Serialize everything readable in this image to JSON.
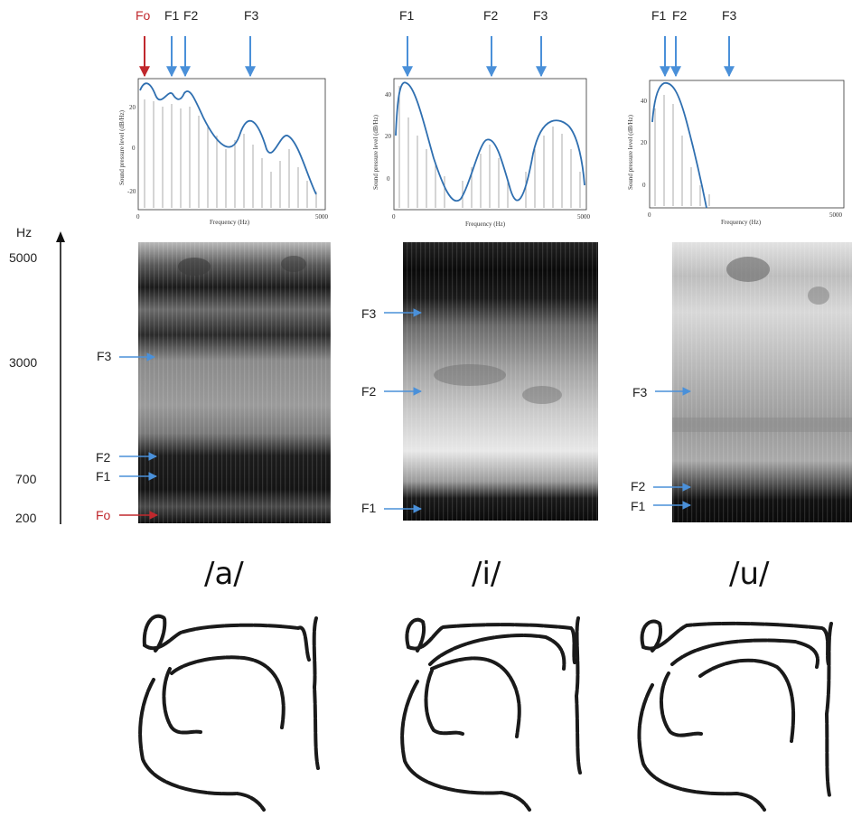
{
  "colors": {
    "formant_arrow": "#4a90d9",
    "fo_arrow": "#c0282d",
    "spectrum_curve": "#2f6fb0"
  },
  "hz_axis": {
    "unit": "Hz",
    "ticks": [
      "5000",
      "3000",
      "700",
      "200"
    ]
  },
  "spectra": [
    {
      "id": "a",
      "top_labels": [
        "Fo",
        "F1",
        "F2",
        "F3"
      ],
      "x_label": "Frequency (Hz)",
      "y_label": "Sound pressure level (dB/Hz)",
      "x_ticks": [
        "0",
        "5000"
      ],
      "y_ticks": [
        "20",
        "0",
        "-20"
      ]
    },
    {
      "id": "i",
      "top_labels": [
        "F1",
        "F2",
        "F3"
      ],
      "x_label": "Frequency (Hz)",
      "y_label": "Sound pressure level (dB/Hz)",
      "x_ticks": [
        "0",
        "5000"
      ],
      "y_ticks": [
        "40",
        "20",
        "0"
      ]
    },
    {
      "id": "u",
      "top_labels": [
        "F1",
        "F2",
        "F3"
      ],
      "x_label": "Frequency (Hz)",
      "y_label": "Sound pressure level (dB/Hz)",
      "x_ticks": [
        "0",
        "5000"
      ],
      "y_ticks": [
        "40",
        "20",
        "0"
      ]
    }
  ],
  "spectrograms": [
    {
      "id": "a",
      "labels": [
        "F3",
        "F2",
        "F1",
        "Fo"
      ]
    },
    {
      "id": "i",
      "labels": [
        "F3",
        "F2",
        "F1"
      ]
    },
    {
      "id": "u",
      "labels": [
        "F3",
        "F2",
        "F1"
      ]
    }
  ],
  "vowels": [
    "/a/",
    "/i/",
    "/u/"
  ]
}
